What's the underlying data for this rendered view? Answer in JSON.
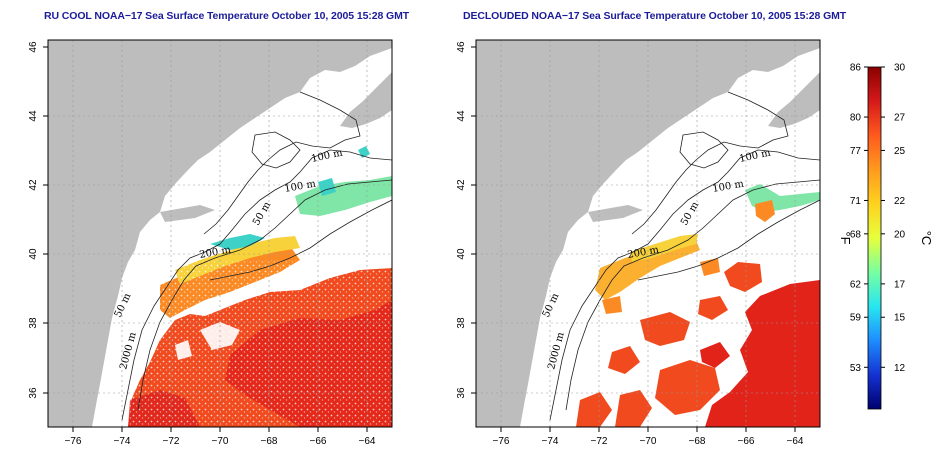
{
  "panels": [
    {
      "id": "left",
      "title": "RU COOL NOAA−17 Sea Surface Temperature October 10, 2005 15:28 GMT",
      "contour_labels": [
        "100 m",
        "100 m",
        "50 m",
        "200 m",
        "50 m",
        "2000 m"
      ]
    },
    {
      "id": "right",
      "title": "DECLOUDED NOAA−17 Sea Surface Temperature October 10, 2005 15:28 GMT",
      "contour_labels": [
        "100 m",
        "100 m",
        "50 m",
        "200 m",
        "50 m",
        "2000 m"
      ]
    }
  ],
  "map_axes": {
    "x_ticks": [
      "−76",
      "−74",
      "−72",
      "−70",
      "−68",
      "−66",
      "−64"
    ],
    "y_ticks": [
      "36",
      "38",
      "40",
      "42",
      "44",
      "46"
    ]
  },
  "colorbar": {
    "fahrenheit_label": "°F",
    "celsius_label": "°C",
    "fahrenheit_ticks": [
      "86",
      "80",
      "77",
      "71",
      "68",
      "62",
      "59",
      "53"
    ],
    "celsius_ticks": [
      "30",
      "27",
      "25",
      "22",
      "20",
      "17",
      "15",
      "12"
    ],
    "celsius_values": [
      30,
      27,
      25,
      22,
      20,
      17,
      15,
      12
    ],
    "range_celsius": [
      9.5,
      30
    ],
    "gradient_colors": [
      "#8b0000",
      "#d41a1a",
      "#ff5a1e",
      "#ff9a1e",
      "#ffd21e",
      "#e6ff3c",
      "#78ffa0",
      "#28e6f0",
      "#1e8cff",
      "#1432d2",
      "#00006e"
    ]
  },
  "colors": {
    "land": "#bdbdbd",
    "ocean": "#ffffff",
    "title": "#1c1c9a",
    "warm_sst": "#f04a1e",
    "hot_sst": "#e2231a",
    "mid_sst": "#fbb030",
    "cool_sst": "#7fe6a8"
  }
}
